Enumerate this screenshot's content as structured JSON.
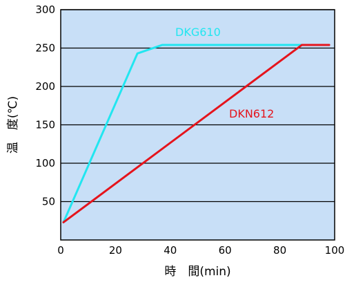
{
  "chart_data": {
    "type": "line",
    "xlabel": "時　間(min)",
    "ylabel": "温　度(℃)",
    "xlim": [
      0,
      100
    ],
    "ylim": [
      0,
      300
    ],
    "x_ticks": [
      "0",
      "20",
      "40",
      "60",
      "80",
      "100"
    ],
    "y_ticks": [
      "50",
      "100",
      "150",
      "200",
      "250",
      "300"
    ],
    "grid": "horizontal",
    "plot_background": "#c8dff7",
    "series": [
      {
        "name": "DKG610",
        "color": "#22e6f0",
        "x": [
          1,
          28,
          37,
          98
        ],
        "y": [
          23,
          243,
          254,
          254
        ]
      },
      {
        "name": "DKN612",
        "color": "#e5141c",
        "x": [
          1,
          88,
          98
        ],
        "y": [
          23,
          254,
          254
        ]
      }
    ]
  }
}
